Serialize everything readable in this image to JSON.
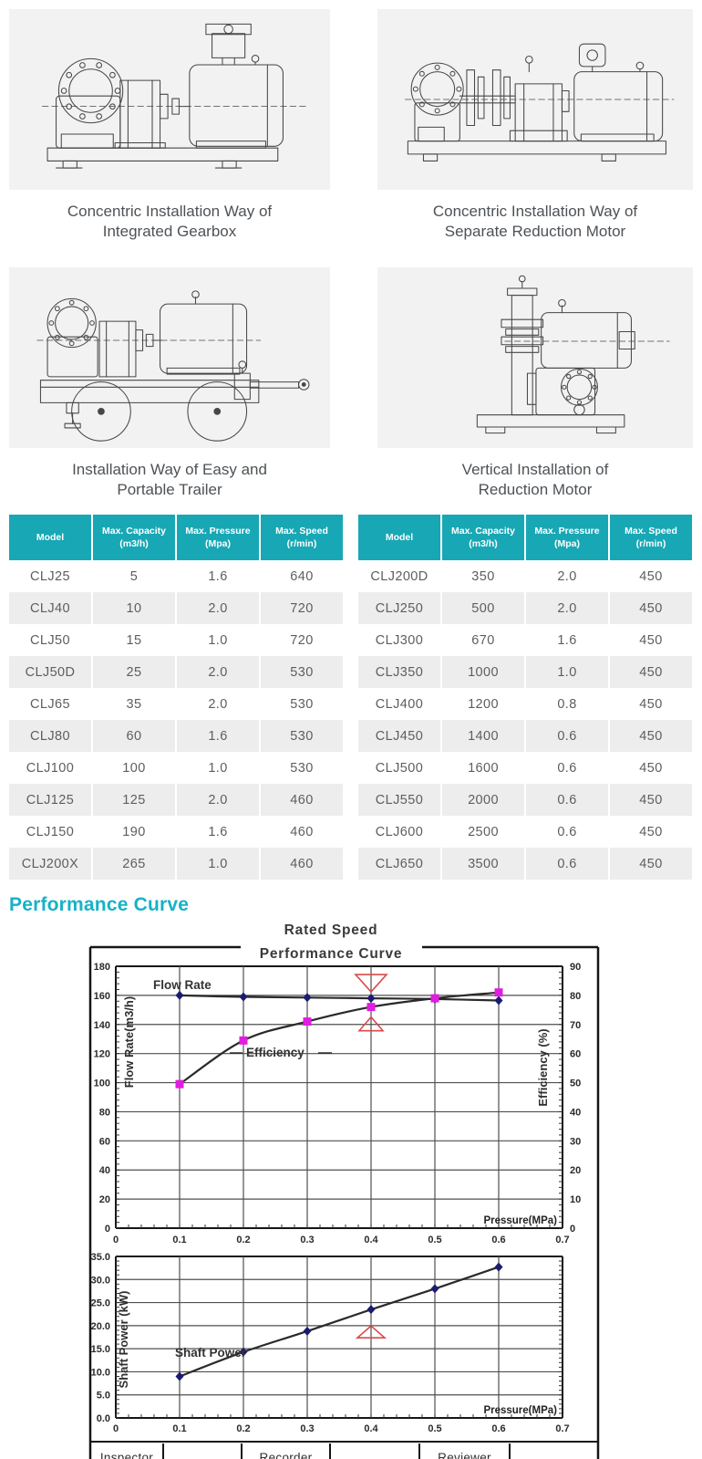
{
  "theme": {
    "heading_color": "#16b2c6",
    "table_header_bg": "#18a7b5",
    "panel_bg": "#f2f2f2",
    "row_alt_bg": "#ededee"
  },
  "installation_figures": [
    {
      "caption_line1": "Concentric Installation Way of",
      "caption_line2": "Integrated Gearbox"
    },
    {
      "caption_line1": "Concentric Installation Way of",
      "caption_line2": "Separate Reduction Motor"
    },
    {
      "caption_line1": "Installation Way of Easy and",
      "caption_line2": "Portable Trailer"
    },
    {
      "caption_line1": "Vertical Installation of",
      "caption_line2": "Reduction Motor"
    }
  ],
  "spec_tables": {
    "headers": [
      {
        "label": "Model",
        "sub": ""
      },
      {
        "label": "Max. Capacity",
        "sub": "(m3/h)"
      },
      {
        "label": "Max. Pressure",
        "sub": "(Mpa)"
      },
      {
        "label": "Max. Speed",
        "sub": "(r/min)"
      }
    ],
    "left_rows": [
      [
        "CLJ25",
        "5",
        "1.6",
        "640"
      ],
      [
        "CLJ40",
        "10",
        "2.0",
        "720"
      ],
      [
        "CLJ50",
        "15",
        "1.0",
        "720"
      ],
      [
        "CLJ50D",
        "25",
        "2.0",
        "530"
      ],
      [
        "CLJ65",
        "35",
        "2.0",
        "530"
      ],
      [
        "CLJ80",
        "60",
        "1.6",
        "530"
      ],
      [
        "CLJ100",
        "100",
        "1.0",
        "530"
      ],
      [
        "CLJ125",
        "125",
        "2.0",
        "460"
      ],
      [
        "CLJ150",
        "190",
        "1.6",
        "460"
      ],
      [
        "CLJ200X",
        "265",
        "1.0",
        "460"
      ]
    ],
    "right_rows": [
      [
        "CLJ200D",
        "350",
        "2.0",
        "450"
      ],
      [
        "CLJ250",
        "500",
        "2.0",
        "450"
      ],
      [
        "CLJ300",
        "670",
        "1.6",
        "450"
      ],
      [
        "CLJ350",
        "1000",
        "1.0",
        "450"
      ],
      [
        "CLJ400",
        "1200",
        "0.8",
        "450"
      ],
      [
        "CLJ450",
        "1400",
        "0.6",
        "450"
      ],
      [
        "CLJ500",
        "1600",
        "0.6",
        "450"
      ],
      [
        "CLJ550",
        "2000",
        "0.6",
        "450"
      ],
      [
        "CLJ600",
        "2500",
        "0.6",
        "450"
      ],
      [
        "CLJ650",
        "3500",
        "0.6",
        "450"
      ]
    ]
  },
  "performance_section": {
    "heading": "Performance Curve",
    "figure_title_line1": "Rated Speed",
    "figure_title_line2": "Performance  Curve",
    "footer_cells": [
      "Inspector",
      "",
      "Recorder",
      "",
      "Reviewer",
      ""
    ]
  },
  "chart_data": [
    {
      "type": "line",
      "title": "Rated Speed Performance Curve",
      "xlabel": "Pressure(MPa)",
      "xlim": [
        0,
        0.7
      ],
      "x_ticks": [
        0,
        0.1,
        0.2,
        0.3,
        0.4,
        0.5,
        0.6,
        0.7
      ],
      "x_grid_step": 0.1,
      "x": [
        0.1,
        0.2,
        0.3,
        0.4,
        0.5,
        0.6
      ],
      "left_axis": {
        "label": "Flow Rate(m3/h)",
        "range": [
          0,
          180
        ],
        "step": 20,
        "minor_step": 4,
        "decimals": 0
      },
      "right_axis": {
        "label": "Efficiency (%)",
        "range": [
          0,
          90
        ],
        "step": 10
      },
      "series": [
        {
          "name": "Flow Rate",
          "axis": "left",
          "marker": "diamond",
          "marker_color": "#1b1b70",
          "line_color": "#2a2a2a",
          "values": [
            160,
            159,
            158.5,
            158,
            157.5,
            156.5
          ]
        },
        {
          "name": "Efficiency",
          "axis": "right",
          "marker": "square",
          "marker_color": "#e01de0",
          "line_color": "#2a2a2a",
          "values": [
            49.5,
            64.5,
            71,
            76,
            79,
            81
          ]
        }
      ],
      "annotations": [
        {
          "type": "bowtie",
          "x": 0.4,
          "color": "#d84b4b"
        }
      ],
      "grid": true,
      "legend_position": "inline-labels"
    },
    {
      "type": "line",
      "title": "",
      "xlabel": "Pressure(MPa)",
      "xlim": [
        0,
        0.7
      ],
      "x_ticks": [
        0,
        0.1,
        0.2,
        0.3,
        0.4,
        0.5,
        0.6,
        0.7
      ],
      "x_grid_step": 0.1,
      "x": [
        0.1,
        0.2,
        0.3,
        0.4,
        0.5,
        0.6
      ],
      "left_axis": {
        "label": "Shaft Power (kW)",
        "range": [
          0,
          35
        ],
        "step": 5,
        "minor_step": 1,
        "decimals": 1
      },
      "series": [
        {
          "name": "Shaft Power",
          "axis": "left",
          "marker": "diamond",
          "marker_color": "#1b1b70",
          "line_color": "#2a2a2a",
          "values": [
            9,
            14.3,
            18.8,
            23.5,
            28,
            32.7
          ]
        }
      ],
      "annotations": [
        {
          "type": "triangle",
          "x": 0.4,
          "color": "#d84b4b"
        }
      ],
      "grid": true,
      "legend_position": "inline-labels"
    }
  ]
}
